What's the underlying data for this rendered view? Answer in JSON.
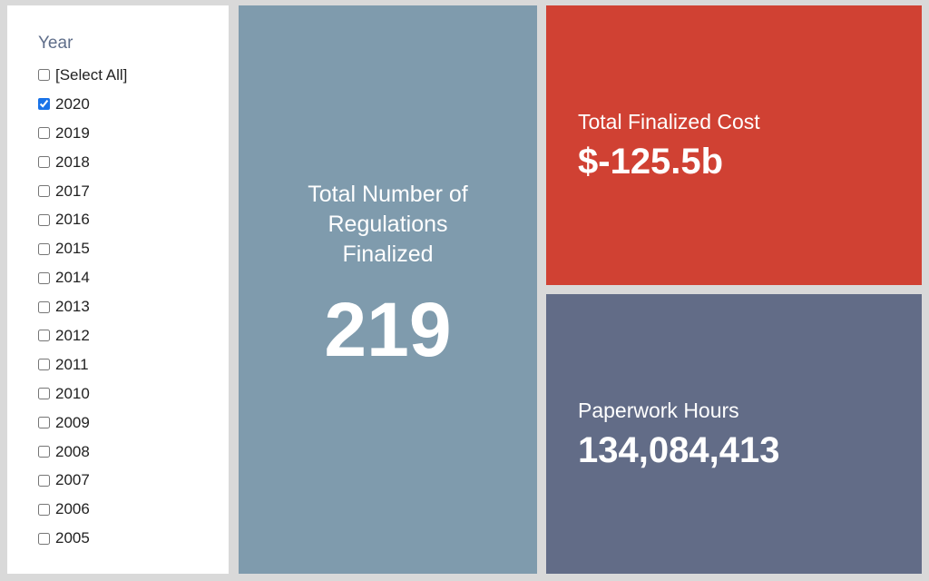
{
  "filter": {
    "title": "Year",
    "options": [
      {
        "label": "[Select All]",
        "checked": false
      },
      {
        "label": "2020",
        "checked": true
      },
      {
        "label": "2019",
        "checked": false
      },
      {
        "label": "2018",
        "checked": false
      },
      {
        "label": "2017",
        "checked": false
      },
      {
        "label": "2016",
        "checked": false
      },
      {
        "label": "2015",
        "checked": false
      },
      {
        "label": "2014",
        "checked": false
      },
      {
        "label": "2013",
        "checked": false
      },
      {
        "label": "2012",
        "checked": false
      },
      {
        "label": "2011",
        "checked": false
      },
      {
        "label": "2010",
        "checked": false
      },
      {
        "label": "2009",
        "checked": false
      },
      {
        "label": "2008",
        "checked": false
      },
      {
        "label": "2007",
        "checked": false
      },
      {
        "label": "2006",
        "checked": false
      },
      {
        "label": "2005",
        "checked": false
      }
    ]
  },
  "tiles": {
    "regulations": {
      "label": "Total Number of Regulations Finalized",
      "value": "219",
      "color": "#7f9bad"
    },
    "cost": {
      "label": "Total Finalized Cost",
      "value": "$-125.5b",
      "color": "#d04133"
    },
    "hours": {
      "label": "Paperwork Hours",
      "value": "134,084,413",
      "color": "#626c87"
    }
  }
}
